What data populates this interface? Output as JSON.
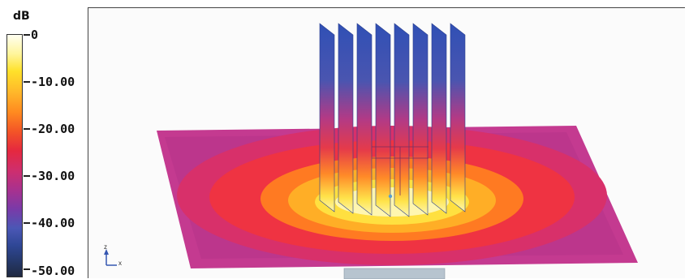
{
  "legend": {
    "unit": "dB",
    "ticks": [
      "0",
      "-10.00",
      "-20.00",
      "-30.00",
      "-40.00",
      "-50.00"
    ]
  },
  "axes": {
    "z": "z",
    "x": "x"
  },
  "colors": {
    "accent": "#ff8a20",
    "blue": "#3b5bb8",
    "magenta": "#c23a7a",
    "yellow": "#ffe12a"
  }
}
